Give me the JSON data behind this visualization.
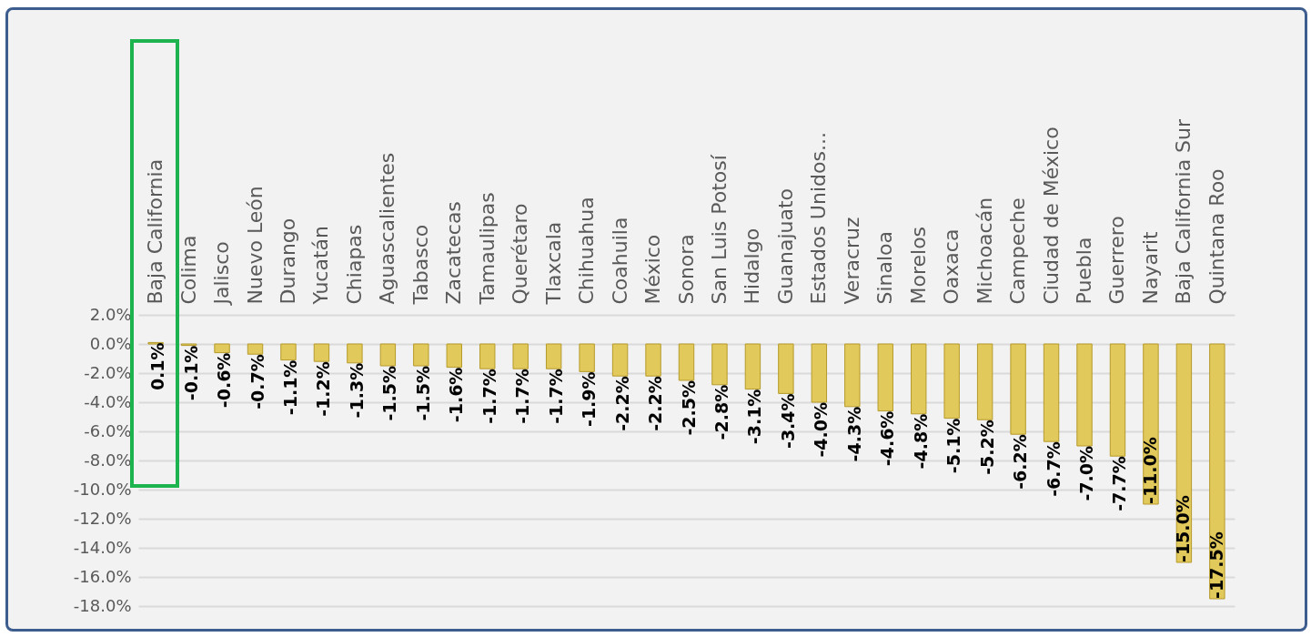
{
  "chart_data": {
    "type": "bar",
    "categories": [
      "Baja California",
      "Colima",
      "Jalisco",
      "Nuevo León",
      "Durango",
      "Yucatán",
      "Chiapas",
      "Aguascalientes",
      "Tabasco",
      "Zacatecas",
      "Tamaulipas",
      "Querétaro",
      "Tlaxcala",
      "Chihuahua",
      "Coahuila",
      "México",
      "Sonora",
      "San Luis Potosí",
      "Hidalgo",
      "Guanajuato",
      "Estados Unidos...",
      "Veracruz",
      "Sinaloa",
      "Morelos",
      "Oaxaca",
      "Michoacán",
      "Campeche",
      "Ciudad de México",
      "Puebla",
      "Guerrero",
      "Nayarit",
      "Baja California Sur",
      "Quintana Roo"
    ],
    "values": [
      0.1,
      -0.1,
      -0.6,
      -0.7,
      -1.1,
      -1.2,
      -1.3,
      -1.5,
      -1.5,
      -1.6,
      -1.7,
      -1.7,
      -1.7,
      -1.9,
      -2.2,
      -2.2,
      -2.5,
      -2.8,
      -3.1,
      -3.4,
      -4.0,
      -4.3,
      -4.6,
      -4.8,
      -5.1,
      -5.2,
      -6.2,
      -6.7,
      -7.0,
      -7.7,
      -11.0,
      -15.0,
      -17.5
    ],
    "value_labels": [
      "0.1%",
      "-0.1%",
      "-0.6%",
      "-0.7%",
      "-1.1%",
      "-1.2%",
      "-1.3%",
      "-1.5%",
      "-1.5%",
      "-1.6%",
      "-1.7%",
      "-1.7%",
      "-1.7%",
      "-1.9%",
      "-2.2%",
      "-2.2%",
      "-2.5%",
      "-2.8%",
      "-3.1%",
      "-3.4%",
      "-4.0%",
      "-4.3%",
      "-4.6%",
      "-4.8%",
      "-5.1%",
      "-5.2%",
      "-6.2%",
      "-6.7%",
      "-7.0%",
      "-7.7%",
      "-11.0%",
      "-15.0%",
      "-17.5%"
    ],
    "color": "#e2c95c",
    "ylim": [
      -18,
      2
    ],
    "yticks": [
      {
        "value": 2,
        "label": "2.0%"
      },
      {
        "value": 0,
        "label": "0.0%"
      },
      {
        "value": -2,
        "label": "-2.0%"
      },
      {
        "value": -4,
        "label": "-4.0%"
      },
      {
        "value": -6,
        "label": "-6.0%"
      },
      {
        "value": -8,
        "label": "-8.0%"
      },
      {
        "value": -10,
        "label": "-10.0%"
      },
      {
        "value": -12,
        "label": "-12.0%"
      },
      {
        "value": -14,
        "label": "-14.0%"
      },
      {
        "value": -16,
        "label": "-16.0%"
      },
      {
        "value": -18,
        "label": "-18.0%"
      }
    ],
    "grid": true
  }
}
